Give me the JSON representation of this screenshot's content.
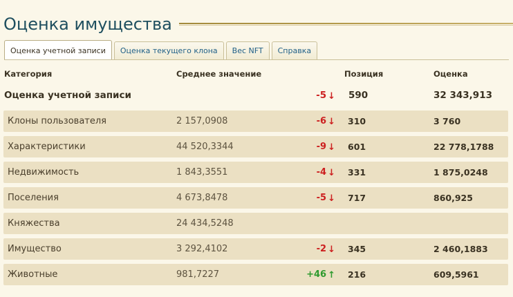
{
  "page": {
    "title": "Оценка имущества"
  },
  "tabs": [
    {
      "label": "Оценка учетной записи",
      "active": true
    },
    {
      "label": "Оценка текущего клона",
      "active": false
    },
    {
      "label": "Вес NFT",
      "active": false
    },
    {
      "label": "Справка",
      "active": false
    }
  ],
  "table": {
    "headers": {
      "category": "Категория",
      "average": "Среднее значение",
      "position": "Позиция",
      "score": "Оценка"
    },
    "summary": {
      "category": "Оценка учетной записи",
      "average": "",
      "change": "-5",
      "change_dir": "down",
      "position": "590",
      "score": "32 343,913"
    },
    "rows": [
      {
        "category": "Клоны пользователя",
        "average": "2 157,0908",
        "change": "-6",
        "change_dir": "down",
        "position": "310",
        "score": "3 760"
      },
      {
        "category": "Характеристики",
        "average": "44 520,3344",
        "change": "-9",
        "change_dir": "down",
        "position": "601",
        "score": "22 778,1788"
      },
      {
        "category": "Недвижимость",
        "average": "1 843,3551",
        "change": "-4",
        "change_dir": "down",
        "position": "331",
        "score": "1 875,0248"
      },
      {
        "category": "Поселения",
        "average": "4 673,8478",
        "change": "-5",
        "change_dir": "down",
        "position": "717",
        "score": "860,925"
      },
      {
        "category": "Княжества",
        "average": "24 434,5248",
        "change": "",
        "change_dir": "",
        "position": "",
        "score": ""
      },
      {
        "category": "Имущество",
        "average": "3 292,4102",
        "change": "-2",
        "change_dir": "down",
        "position": "345",
        "score": "2 460,1883"
      },
      {
        "category": "Животные",
        "average": "981,7227",
        "change": "+46",
        "change_dir": "up",
        "position": "216",
        "score": "609,5961"
      }
    ]
  },
  "icons": {
    "down": "arrow-down-icon",
    "up": "arrow-up-icon"
  },
  "colors": {
    "title": "#1f4f5f",
    "tab_link": "#1f5f86",
    "row_bg": "#ebe0c3",
    "change_down": "#cc1f1f",
    "change_up": "#2e9a2e"
  }
}
